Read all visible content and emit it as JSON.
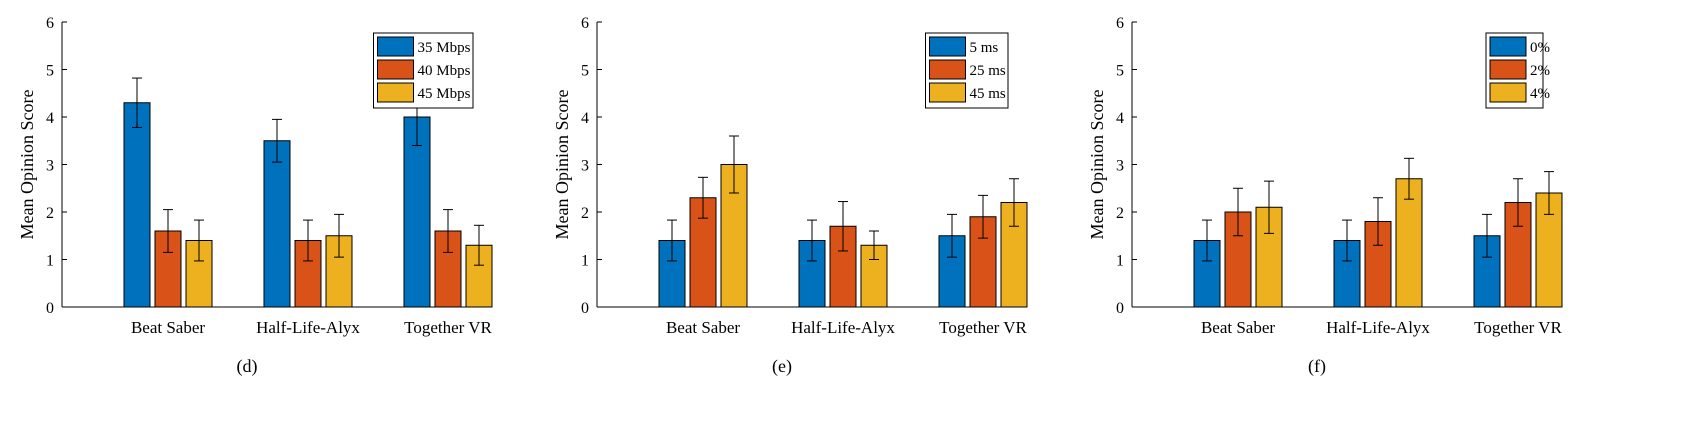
{
  "colors": {
    "blue": "#0072BD",
    "orange": "#D95319",
    "yellow": "#EDB120"
  },
  "chart_data": [
    {
      "type": "bar",
      "caption": "(d)",
      "categories": [
        "Beat Saber",
        "Half-Life-Alyx",
        "Together VR"
      ],
      "ylabel": "Mean Opinion Score",
      "ylim": [
        0,
        6
      ],
      "yticks": [
        "0",
        "1",
        "2",
        "3",
        "4",
        "5",
        "6"
      ],
      "legend_position": "top-right",
      "series": [
        {
          "name": "35 Mbps",
          "color": "#0072BD",
          "values": [
            4.3,
            3.5,
            4.0
          ],
          "errors": [
            0.52,
            0.45,
            0.6
          ]
        },
        {
          "name": "40 Mbps",
          "color": "#D95319",
          "values": [
            1.6,
            1.4,
            1.6
          ],
          "errors": [
            0.45,
            0.43,
            0.45
          ]
        },
        {
          "name": "45 Mbps",
          "color": "#EDB120",
          "values": [
            1.4,
            1.5,
            1.3
          ],
          "errors": [
            0.43,
            0.45,
            0.42
          ]
        }
      ]
    },
    {
      "type": "bar",
      "caption": "(e)",
      "categories": [
        "Beat Saber",
        "Half-Life-Alyx",
        "Together VR"
      ],
      "ylabel": "Mean Opinion Score",
      "ylim": [
        0,
        6
      ],
      "yticks": [
        "0",
        "1",
        "2",
        "3",
        "4",
        "5",
        "6"
      ],
      "legend_position": "top-right",
      "series": [
        {
          "name": "5 ms",
          "color": "#0072BD",
          "values": [
            1.4,
            1.4,
            1.5
          ],
          "errors": [
            0.43,
            0.43,
            0.45
          ]
        },
        {
          "name": "25 ms",
          "color": "#D95319",
          "values": [
            2.3,
            1.7,
            1.9
          ],
          "errors": [
            0.43,
            0.52,
            0.45
          ]
        },
        {
          "name": "45 ms",
          "color": "#EDB120",
          "values": [
            3.0,
            1.3,
            2.2
          ],
          "errors": [
            0.6,
            0.3,
            0.5
          ]
        }
      ]
    },
    {
      "type": "bar",
      "caption": "(f)",
      "categories": [
        "Beat Saber",
        "Half-Life-Alyx",
        "Together VR"
      ],
      "ylabel": "Mean Opinion Score",
      "ylim": [
        0,
        6
      ],
      "yticks": [
        "0",
        "1",
        "2",
        "3",
        "4",
        "5",
        "6"
      ],
      "legend_position": "top-right",
      "series": [
        {
          "name": "0%",
          "color": "#0072BD",
          "values": [
            1.4,
            1.4,
            1.5
          ],
          "errors": [
            0.43,
            0.43,
            0.45
          ]
        },
        {
          "name": "2%",
          "color": "#D95319",
          "values": [
            2.0,
            1.8,
            2.2
          ],
          "errors": [
            0.5,
            0.5,
            0.5
          ]
        },
        {
          "name": "4%",
          "color": "#EDB120",
          "values": [
            2.1,
            2.7,
            2.4
          ],
          "errors": [
            0.55,
            0.43,
            0.45
          ]
        }
      ]
    }
  ]
}
